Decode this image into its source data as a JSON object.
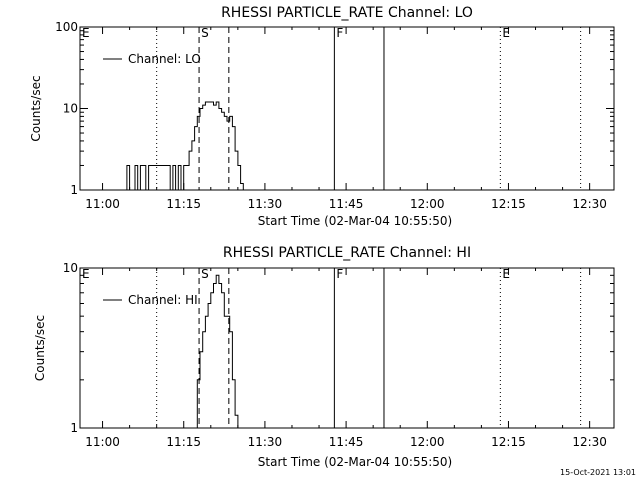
{
  "footer_timestamp": "15-Oct-2021 13:01",
  "chart_data": [
    {
      "type": "line",
      "title": "RHESSI PARTICLE_RATE Channel: LO",
      "xlabel": "Start Time (02-Mar-04 10:55:50)",
      "ylabel": "Counts/sec",
      "yscale": "log",
      "ylim": [
        1,
        100
      ],
      "xlim": [
        "10:55:50",
        "12:34:30"
      ],
      "x_ticks": [
        "11:00",
        "11:15",
        "11:30",
        "11:45",
        "12:00",
        "12:15",
        "12:30"
      ],
      "y_ticks": [
        "1",
        "10",
        "100"
      ],
      "legend": {
        "position": "top-left",
        "entries": [
          "Channel: LO"
        ]
      },
      "series": [
        {
          "name": "Channel: LO",
          "x": [
            "11:04",
            "11:04:30",
            "11:05",
            "11:05:30",
            "11:06",
            "11:06:30",
            "11:07",
            "11:07:30",
            "11:08",
            "11:08:30",
            "11:09",
            "11:09:30",
            "11:10",
            "11:10:30",
            "11:11",
            "11:11:30",
            "11:12",
            "11:12:30",
            "11:13",
            "11:13:30",
            "11:14",
            "11:14:30",
            "11:15",
            "11:15:30",
            "11:16",
            "11:16:30",
            "11:17",
            "11:17:30",
            "11:18",
            "11:18:30",
            "11:19",
            "11:19:30",
            "11:20",
            "11:20:30",
            "11:21",
            "11:21:30",
            "11:22",
            "11:22:30",
            "11:23",
            "11:23:30",
            "11:24",
            "11:24:30",
            "11:25",
            "11:25:30",
            "11:26",
            "11:26:30"
          ],
          "values": [
            1,
            2,
            1,
            1,
            2,
            1,
            2,
            2,
            1,
            2,
            2,
            2,
            2,
            2,
            2,
            2,
            2,
            1,
            2,
            1,
            2,
            1,
            2,
            2,
            3,
            4,
            6,
            8,
            10,
            11,
            12,
            12,
            12,
            11,
            12,
            10,
            9,
            8,
            7,
            8,
            6,
            3,
            2,
            1.2,
            1,
            1
          ]
        }
      ],
      "annotations": [
        {
          "text": "E",
          "x": "10:55:50",
          "style": "dotted"
        },
        {
          "text": "",
          "x": "11:10",
          "style": "dotted"
        },
        {
          "text": "S",
          "x": "11:17:50",
          "style": "dashed"
        },
        {
          "text": "",
          "x": "11:23:20",
          "style": "dashed"
        },
        {
          "text": "F",
          "x": "11:42:50",
          "style": "solid"
        },
        {
          "text": "",
          "x": "11:52:00",
          "style": "solid"
        },
        {
          "text": "E",
          "x": "12:13:30",
          "style": "dotted"
        },
        {
          "text": "",
          "x": "12:28:20",
          "style": "dotted"
        }
      ]
    },
    {
      "type": "line",
      "title": "RHESSI PARTICLE_RATE Channel: HI",
      "xlabel": "Start Time (02-Mar-04 10:55:50)",
      "ylabel": "Counts/sec",
      "yscale": "log",
      "ylim": [
        1,
        10
      ],
      "xlim": [
        "10:55:50",
        "12:34:30"
      ],
      "x_ticks": [
        "11:00",
        "11:15",
        "11:30",
        "11:45",
        "12:00",
        "12:15",
        "12:30"
      ],
      "y_ticks": [
        "1",
        "10"
      ],
      "legend": {
        "position": "top-left",
        "entries": [
          "Channel: HI"
        ]
      },
      "series": [
        {
          "name": "Channel: HI",
          "x": [
            "11:17",
            "11:17:30",
            "11:18",
            "11:18:30",
            "11:19",
            "11:19:30",
            "11:20",
            "11:20:30",
            "11:21",
            "11:21:30",
            "11:22",
            "11:22:30",
            "11:23",
            "11:23:30",
            "11:24",
            "11:24:30",
            "11:25"
          ],
          "values": [
            1,
            2,
            3,
            4,
            5,
            6,
            7,
            8,
            9,
            8,
            7,
            5,
            5,
            4,
            2,
            1.2,
            1
          ]
        }
      ],
      "annotations": [
        {
          "text": "E",
          "x": "10:55:50",
          "style": "dotted"
        },
        {
          "text": "",
          "x": "11:10",
          "style": "dotted"
        },
        {
          "text": "S",
          "x": "11:17:50",
          "style": "dashed"
        },
        {
          "text": "",
          "x": "11:23:20",
          "style": "dashed"
        },
        {
          "text": "F",
          "x": "11:42:50",
          "style": "solid"
        },
        {
          "text": "",
          "x": "11:52:00",
          "style": "solid"
        },
        {
          "text": "E",
          "x": "12:13:30",
          "style": "dotted"
        },
        {
          "text": "",
          "x": "12:28:20",
          "style": "dotted"
        }
      ]
    }
  ]
}
